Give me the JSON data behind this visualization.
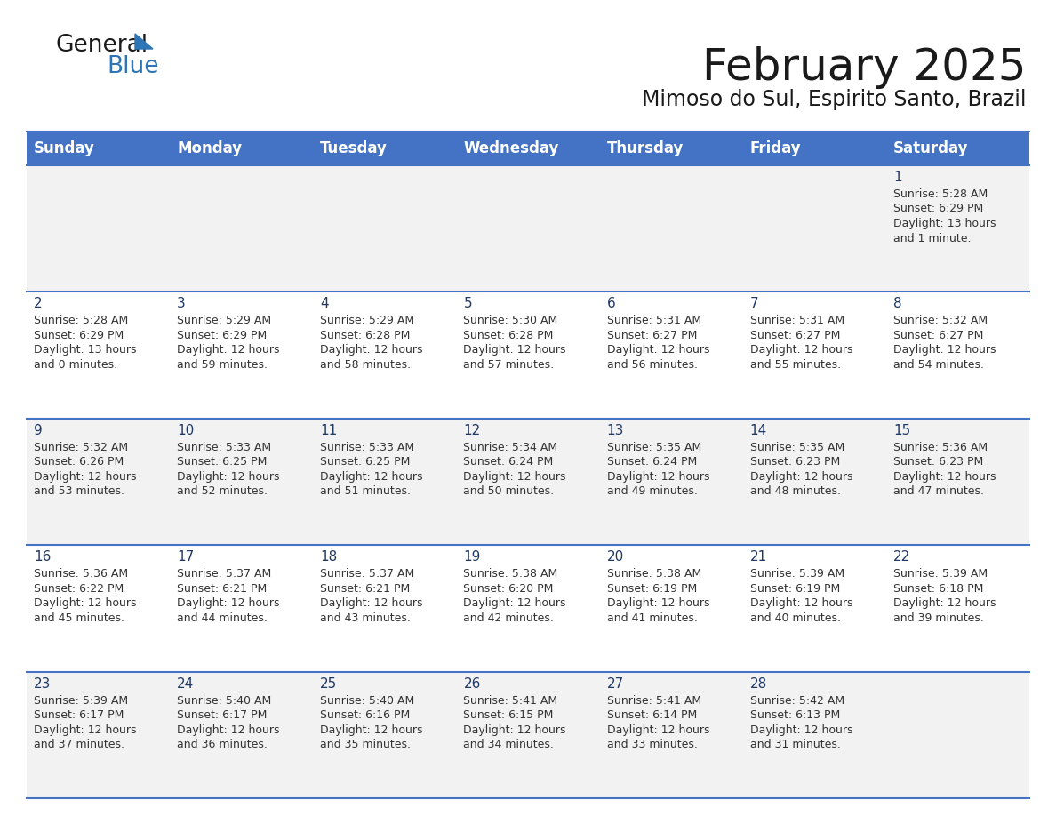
{
  "title": "February 2025",
  "subtitle": "Mimoso do Sul, Espirito Santo, Brazil",
  "header_bg": "#4472C4",
  "header_text_color": "#FFFFFF",
  "cell_bg_row0": "#F2F2F2",
  "cell_bg_row1": "#FFFFFF",
  "cell_bg_row2": "#F2F2F2",
  "cell_bg_row3": "#FFFFFF",
  "cell_bg_row4": "#F2F2F2",
  "day_headers": [
    "Sunday",
    "Monday",
    "Tuesday",
    "Wednesday",
    "Thursday",
    "Friday",
    "Saturday"
  ],
  "title_color": "#1a1a1a",
  "subtitle_color": "#1a1a1a",
  "cell_text_color": "#333333",
  "day_num_color": "#1F3864",
  "line_color": "#4472C4",
  "logo_black": "#1a1a1a",
  "logo_blue": "#2E75B6",
  "triangle_color": "#2E75B6",
  "days": [
    {
      "day": 1,
      "col": 6,
      "row": 0,
      "sunrise": "5:28 AM",
      "sunset": "6:29 PM",
      "daylight_h": "13 hours",
      "daylight_m": "and 1 minute."
    },
    {
      "day": 2,
      "col": 0,
      "row": 1,
      "sunrise": "5:28 AM",
      "sunset": "6:29 PM",
      "daylight_h": "13 hours",
      "daylight_m": "and 0 minutes."
    },
    {
      "day": 3,
      "col": 1,
      "row": 1,
      "sunrise": "5:29 AM",
      "sunset": "6:29 PM",
      "daylight_h": "12 hours",
      "daylight_m": "and 59 minutes."
    },
    {
      "day": 4,
      "col": 2,
      "row": 1,
      "sunrise": "5:29 AM",
      "sunset": "6:28 PM",
      "daylight_h": "12 hours",
      "daylight_m": "and 58 minutes."
    },
    {
      "day": 5,
      "col": 3,
      "row": 1,
      "sunrise": "5:30 AM",
      "sunset": "6:28 PM",
      "daylight_h": "12 hours",
      "daylight_m": "and 57 minutes."
    },
    {
      "day": 6,
      "col": 4,
      "row": 1,
      "sunrise": "5:31 AM",
      "sunset": "6:27 PM",
      "daylight_h": "12 hours",
      "daylight_m": "and 56 minutes."
    },
    {
      "day": 7,
      "col": 5,
      "row": 1,
      "sunrise": "5:31 AM",
      "sunset": "6:27 PM",
      "daylight_h": "12 hours",
      "daylight_m": "and 55 minutes."
    },
    {
      "day": 8,
      "col": 6,
      "row": 1,
      "sunrise": "5:32 AM",
      "sunset": "6:27 PM",
      "daylight_h": "12 hours",
      "daylight_m": "and 54 minutes."
    },
    {
      "day": 9,
      "col": 0,
      "row": 2,
      "sunrise": "5:32 AM",
      "sunset": "6:26 PM",
      "daylight_h": "12 hours",
      "daylight_m": "and 53 minutes."
    },
    {
      "day": 10,
      "col": 1,
      "row": 2,
      "sunrise": "5:33 AM",
      "sunset": "6:25 PM",
      "daylight_h": "12 hours",
      "daylight_m": "and 52 minutes."
    },
    {
      "day": 11,
      "col": 2,
      "row": 2,
      "sunrise": "5:33 AM",
      "sunset": "6:25 PM",
      "daylight_h": "12 hours",
      "daylight_m": "and 51 minutes."
    },
    {
      "day": 12,
      "col": 3,
      "row": 2,
      "sunrise": "5:34 AM",
      "sunset": "6:24 PM",
      "daylight_h": "12 hours",
      "daylight_m": "and 50 minutes."
    },
    {
      "day": 13,
      "col": 4,
      "row": 2,
      "sunrise": "5:35 AM",
      "sunset": "6:24 PM",
      "daylight_h": "12 hours",
      "daylight_m": "and 49 minutes."
    },
    {
      "day": 14,
      "col": 5,
      "row": 2,
      "sunrise": "5:35 AM",
      "sunset": "6:23 PM",
      "daylight_h": "12 hours",
      "daylight_m": "and 48 minutes."
    },
    {
      "day": 15,
      "col": 6,
      "row": 2,
      "sunrise": "5:36 AM",
      "sunset": "6:23 PM",
      "daylight_h": "12 hours",
      "daylight_m": "and 47 minutes."
    },
    {
      "day": 16,
      "col": 0,
      "row": 3,
      "sunrise": "5:36 AM",
      "sunset": "6:22 PM",
      "daylight_h": "12 hours",
      "daylight_m": "and 45 minutes."
    },
    {
      "day": 17,
      "col": 1,
      "row": 3,
      "sunrise": "5:37 AM",
      "sunset": "6:21 PM",
      "daylight_h": "12 hours",
      "daylight_m": "and 44 minutes."
    },
    {
      "day": 18,
      "col": 2,
      "row": 3,
      "sunrise": "5:37 AM",
      "sunset": "6:21 PM",
      "daylight_h": "12 hours",
      "daylight_m": "and 43 minutes."
    },
    {
      "day": 19,
      "col": 3,
      "row": 3,
      "sunrise": "5:38 AM",
      "sunset": "6:20 PM",
      "daylight_h": "12 hours",
      "daylight_m": "and 42 minutes."
    },
    {
      "day": 20,
      "col": 4,
      "row": 3,
      "sunrise": "5:38 AM",
      "sunset": "6:19 PM",
      "daylight_h": "12 hours",
      "daylight_m": "and 41 minutes."
    },
    {
      "day": 21,
      "col": 5,
      "row": 3,
      "sunrise": "5:39 AM",
      "sunset": "6:19 PM",
      "daylight_h": "12 hours",
      "daylight_m": "and 40 minutes."
    },
    {
      "day": 22,
      "col": 6,
      "row": 3,
      "sunrise": "5:39 AM",
      "sunset": "6:18 PM",
      "daylight_h": "12 hours",
      "daylight_m": "and 39 minutes."
    },
    {
      "day": 23,
      "col": 0,
      "row": 4,
      "sunrise": "5:39 AM",
      "sunset": "6:17 PM",
      "daylight_h": "12 hours",
      "daylight_m": "and 37 minutes."
    },
    {
      "day": 24,
      "col": 1,
      "row": 4,
      "sunrise": "5:40 AM",
      "sunset": "6:17 PM",
      "daylight_h": "12 hours",
      "daylight_m": "and 36 minutes."
    },
    {
      "day": 25,
      "col": 2,
      "row": 4,
      "sunrise": "5:40 AM",
      "sunset": "6:16 PM",
      "daylight_h": "12 hours",
      "daylight_m": "and 35 minutes."
    },
    {
      "day": 26,
      "col": 3,
      "row": 4,
      "sunrise": "5:41 AM",
      "sunset": "6:15 PM",
      "daylight_h": "12 hours",
      "daylight_m": "and 34 minutes."
    },
    {
      "day": 27,
      "col": 4,
      "row": 4,
      "sunrise": "5:41 AM",
      "sunset": "6:14 PM",
      "daylight_h": "12 hours",
      "daylight_m": "and 33 minutes."
    },
    {
      "day": 28,
      "col": 5,
      "row": 4,
      "sunrise": "5:42 AM",
      "sunset": "6:13 PM",
      "daylight_h": "12 hours",
      "daylight_m": "and 31 minutes."
    }
  ]
}
